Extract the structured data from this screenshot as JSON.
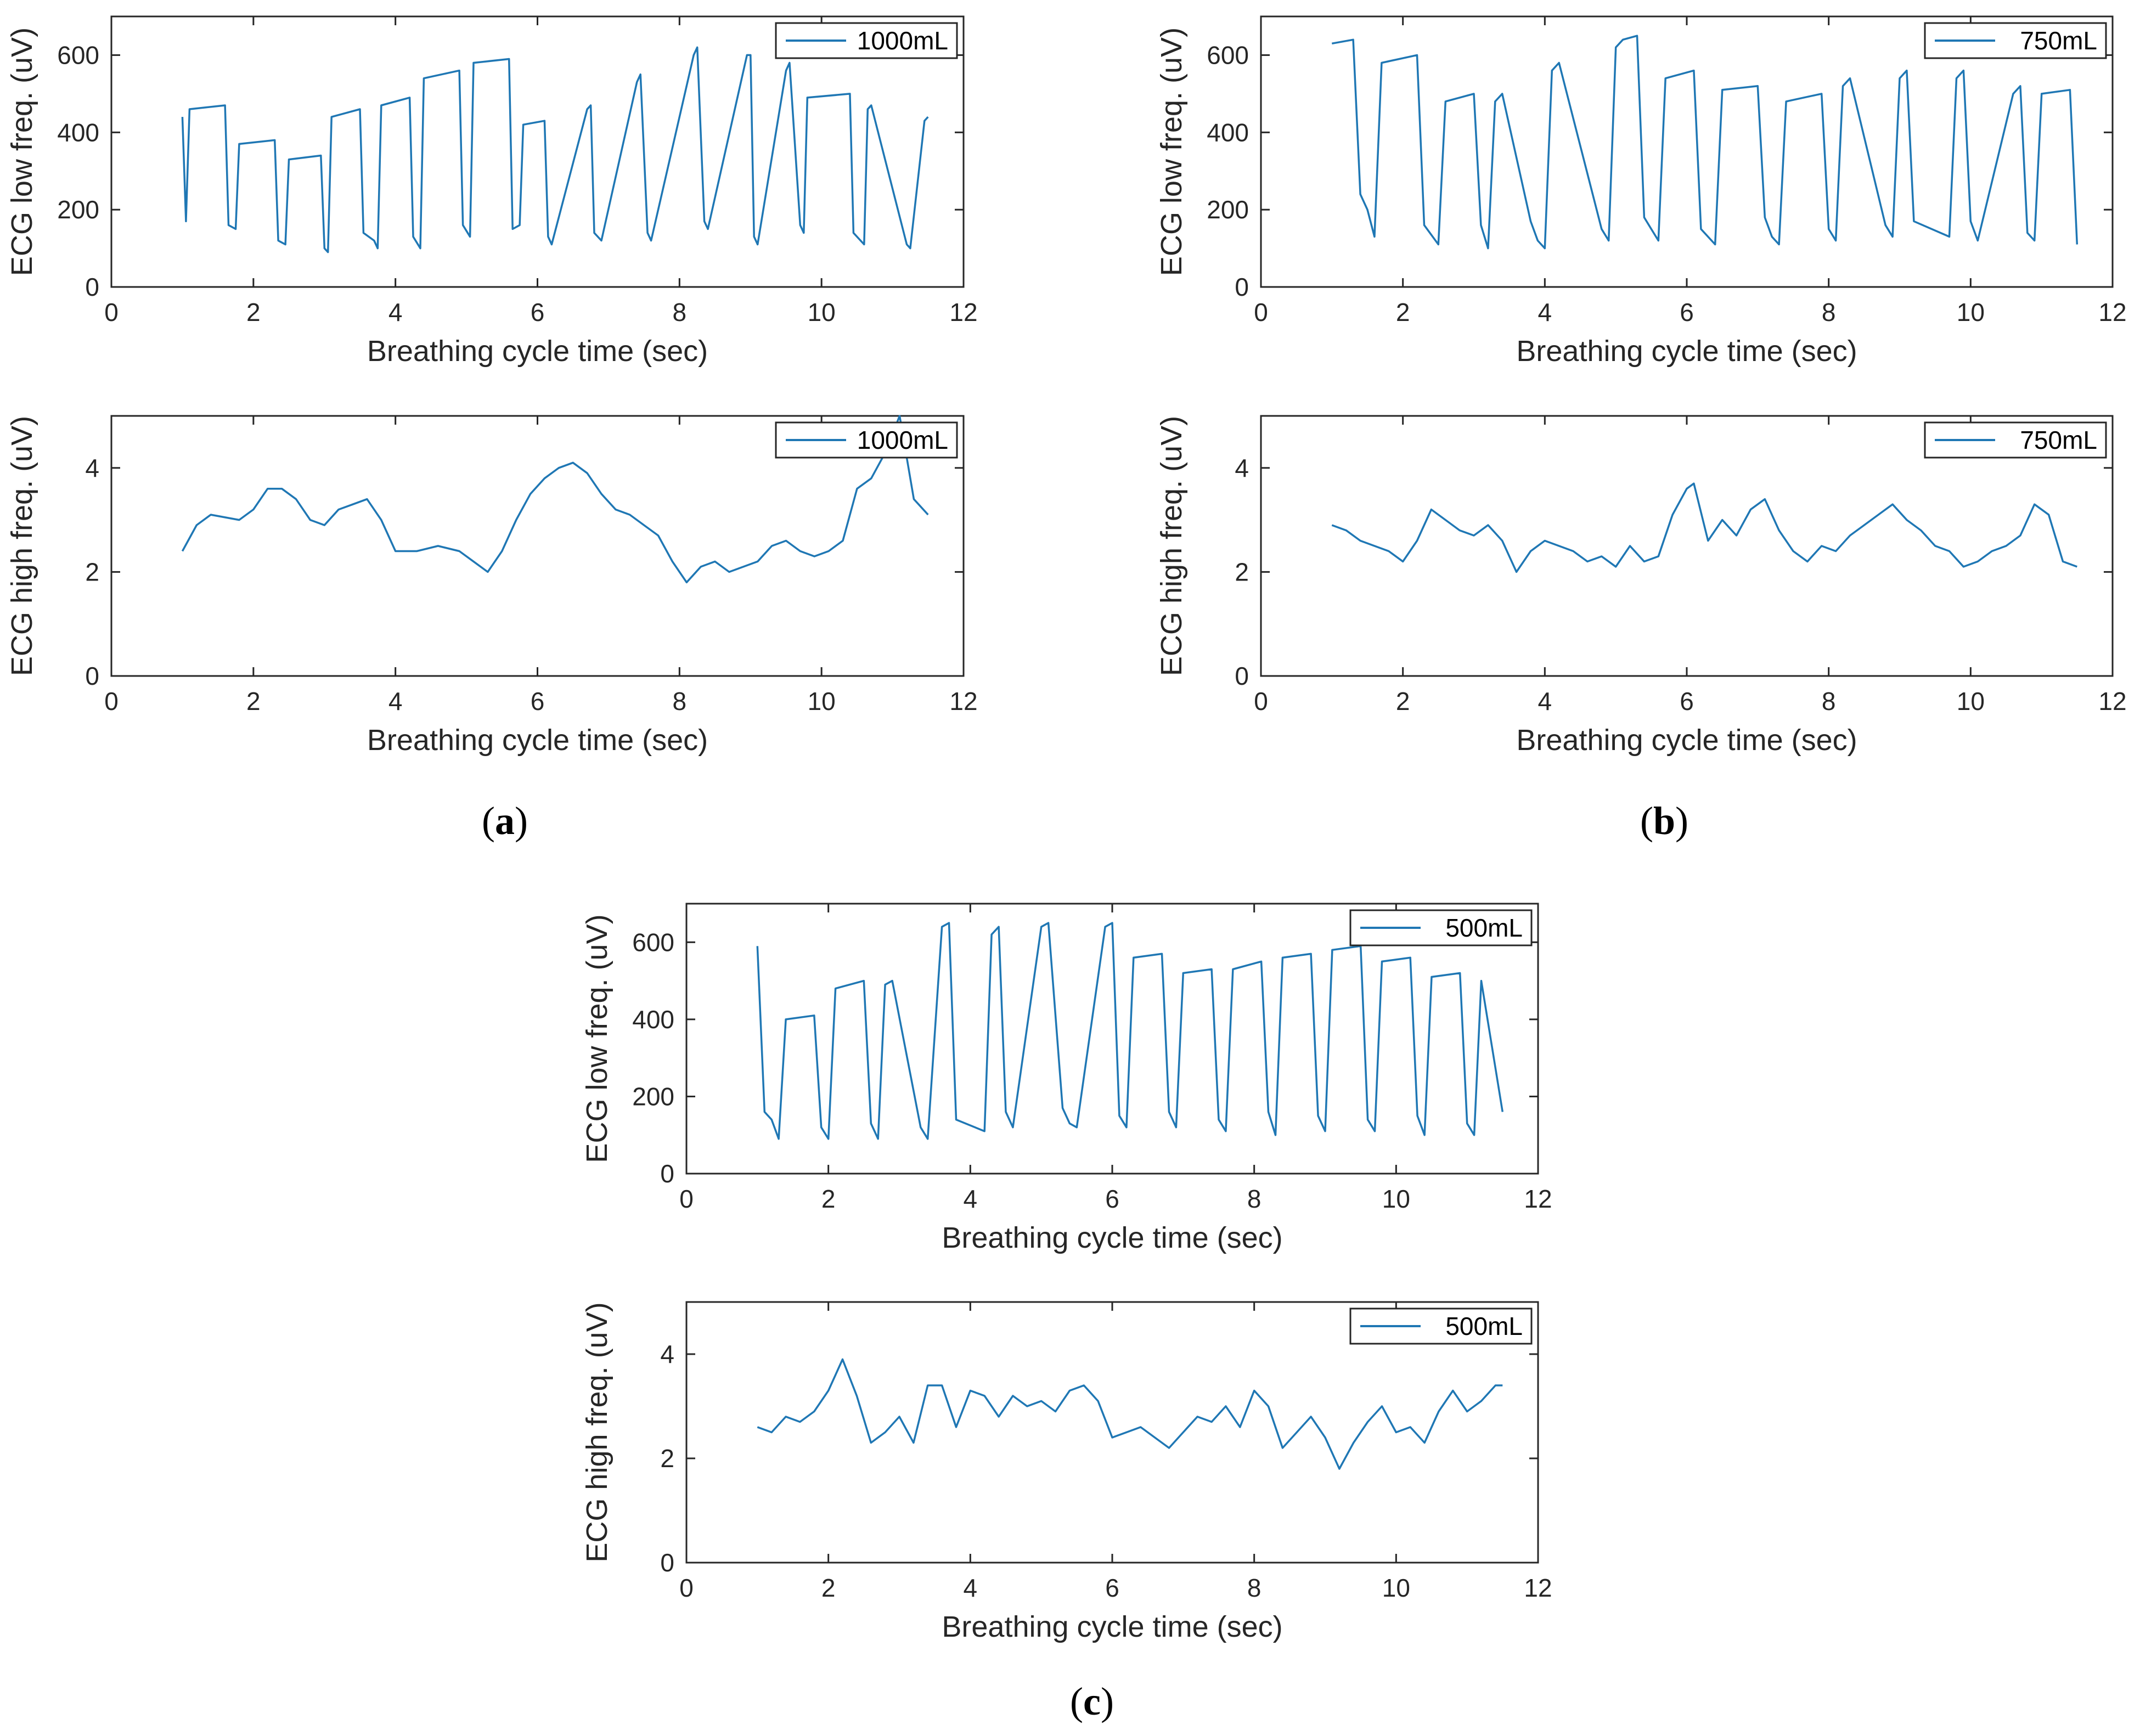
{
  "figure": {
    "captions": [
      {
        "id": "a",
        "open": "(",
        "letter": "a",
        "close": ")"
      },
      {
        "id": "b",
        "open": "(",
        "letter": "b",
        "close": ")"
      },
      {
        "id": "c",
        "open": "(",
        "letter": "c",
        "close": ")"
      }
    ],
    "colors": {
      "line": "#1f77b4",
      "axis": "#262626",
      "text": "#262626"
    }
  },
  "chart_data": [
    {
      "id": "a-low",
      "panel": "a",
      "type": "line",
      "title": "",
      "xlabel": "Breathing cycle time (sec)",
      "ylabel": "ECG low freq. (uV)",
      "xlim": [
        0,
        12
      ],
      "ylim": [
        0,
        700
      ],
      "xticks": [
        0,
        2,
        4,
        6,
        8,
        10,
        12
      ],
      "yticks": [
        0,
        200,
        400,
        600
      ],
      "grid": false,
      "legend_position": "top-right",
      "series": [
        {
          "name": "1000mL",
          "x": [
            1.0,
            1.05,
            1.1,
            1.6,
            1.65,
            1.75,
            1.8,
            2.3,
            2.35,
            2.45,
            2.5,
            2.95,
            3.0,
            3.05,
            3.1,
            3.5,
            3.55,
            3.7,
            3.75,
            3.8,
            4.2,
            4.25,
            4.35,
            4.4,
            4.9,
            4.95,
            5.05,
            5.1,
            5.6,
            5.65,
            5.75,
            5.8,
            6.1,
            6.15,
            6.2,
            6.7,
            6.75,
            6.8,
            6.9,
            7.4,
            7.45,
            7.55,
            7.6,
            8.2,
            8.25,
            8.35,
            8.4,
            8.95,
            9.0,
            9.05,
            9.1,
            9.5,
            9.55,
            9.7,
            9.75,
            9.8,
            10.4,
            10.45,
            10.6,
            10.65,
            10.7,
            11.2,
            11.25,
            11.45,
            11.5
          ],
          "values": [
            440,
            170,
            460,
            470,
            160,
            150,
            370,
            380,
            120,
            110,
            330,
            340,
            100,
            90,
            440,
            460,
            140,
            120,
            100,
            470,
            490,
            130,
            100,
            540,
            560,
            160,
            130,
            580,
            590,
            150,
            160,
            420,
            430,
            130,
            110,
            460,
            470,
            140,
            120,
            530,
            550,
            140,
            120,
            600,
            620,
            170,
            150,
            600,
            600,
            130,
            110,
            560,
            580,
            160,
            140,
            490,
            500,
            140,
            110,
            460,
            470,
            110,
            100,
            430,
            440
          ]
        }
      ]
    },
    {
      "id": "a-high",
      "panel": "a",
      "type": "line",
      "title": "",
      "xlabel": "Breathing cycle time (sec)",
      "ylabel": "ECG high freq. (uV)",
      "xlim": [
        0,
        12
      ],
      "ylim": [
        0,
        5
      ],
      "xticks": [
        0,
        2,
        4,
        6,
        8,
        10,
        12
      ],
      "yticks": [
        0,
        2,
        4
      ],
      "grid": false,
      "legend_position": "top-right",
      "series": [
        {
          "name": "1000mL",
          "x": [
            1.0,
            1.2,
            1.4,
            1.8,
            2.0,
            2.2,
            2.4,
            2.6,
            2.8,
            3.0,
            3.2,
            3.4,
            3.6,
            3.8,
            4.0,
            4.3,
            4.6,
            4.9,
            5.1,
            5.3,
            5.5,
            5.7,
            5.9,
            6.1,
            6.3,
            6.5,
            6.7,
            6.9,
            7.1,
            7.3,
            7.5,
            7.7,
            7.9,
            8.1,
            8.3,
            8.5,
            8.7,
            8.9,
            9.1,
            9.3,
            9.5,
            9.7,
            9.9,
            10.1,
            10.3,
            10.5,
            10.7,
            10.9,
            11.1,
            11.3,
            11.5
          ],
          "values": [
            2.4,
            2.9,
            3.1,
            3.0,
            3.2,
            3.6,
            3.6,
            3.4,
            3.0,
            2.9,
            3.2,
            3.3,
            3.4,
            3.0,
            2.4,
            2.4,
            2.5,
            2.4,
            2.2,
            2.0,
            2.4,
            3.0,
            3.5,
            3.8,
            4.0,
            4.1,
            3.9,
            3.5,
            3.2,
            3.1,
            2.9,
            2.7,
            2.2,
            1.8,
            2.1,
            2.2,
            2.0,
            2.1,
            2.2,
            2.5,
            2.6,
            2.4,
            2.3,
            2.4,
            2.6,
            3.6,
            3.8,
            4.3,
            5.0,
            3.4,
            3.1
          ]
        }
      ]
    },
    {
      "id": "b-low",
      "panel": "b",
      "type": "line",
      "title": "",
      "xlabel": "Breathing cycle time (sec)",
      "ylabel": "ECG low freq. (uV)",
      "xlim": [
        0,
        12
      ],
      "ylim": [
        0,
        700
      ],
      "xticks": [
        0,
        2,
        4,
        6,
        8,
        10,
        12
      ],
      "yticks": [
        0,
        200,
        400,
        600
      ],
      "grid": false,
      "legend_position": "top-right",
      "series": [
        {
          "name": "750mL",
          "x": [
            1.0,
            1.3,
            1.4,
            1.5,
            1.6,
            1.7,
            2.2,
            2.3,
            2.5,
            2.6,
            3.0,
            3.1,
            3.2,
            3.3,
            3.4,
            3.8,
            3.9,
            4.0,
            4.1,
            4.2,
            4.8,
            4.9,
            5.0,
            5.1,
            5.3,
            5.4,
            5.5,
            5.6,
            5.7,
            6.1,
            6.2,
            6.4,
            6.5,
            7.0,
            7.1,
            7.2,
            7.3,
            7.4,
            7.9,
            8.0,
            8.1,
            8.2,
            8.3,
            8.8,
            8.9,
            9.0,
            9.1,
            9.2,
            9.7,
            9.8,
            9.9,
            10.0,
            10.1,
            10.6,
            10.7,
            10.8,
            10.9,
            11.0,
            11.4,
            11.5
          ],
          "values": [
            630,
            640,
            240,
            200,
            130,
            580,
            600,
            160,
            110,
            480,
            500,
            160,
            100,
            480,
            500,
            170,
            120,
            100,
            560,
            580,
            150,
            120,
            620,
            640,
            650,
            180,
            150,
            120,
            540,
            560,
            150,
            110,
            510,
            520,
            180,
            130,
            110,
            480,
            500,
            150,
            120,
            520,
            540,
            160,
            130,
            540,
            560,
            170,
            130,
            540,
            560,
            170,
            120,
            500,
            520,
            140,
            120,
            500,
            510,
            110
          ]
        }
      ]
    },
    {
      "id": "b-high",
      "panel": "b",
      "type": "line",
      "title": "",
      "xlabel": "Breathing cycle time (sec)",
      "ylabel": "ECG high freq. (uV)",
      "xlim": [
        0,
        12
      ],
      "ylim": [
        0,
        5
      ],
      "xticks": [
        0,
        2,
        4,
        6,
        8,
        10,
        12
      ],
      "yticks": [
        0,
        2,
        4
      ],
      "grid": false,
      "legend_position": "top-right",
      "series": [
        {
          "name": "750mL",
          "x": [
            1.0,
            1.2,
            1.4,
            1.6,
            1.8,
            2.0,
            2.2,
            2.4,
            2.6,
            2.8,
            3.0,
            3.2,
            3.4,
            3.6,
            3.8,
            4.0,
            4.2,
            4.4,
            4.6,
            4.8,
            5.0,
            5.2,
            5.4,
            5.6,
            5.8,
            6.0,
            6.1,
            6.3,
            6.5,
            6.7,
            6.9,
            7.1,
            7.3,
            7.5,
            7.7,
            7.9,
            8.1,
            8.3,
            8.5,
            8.7,
            8.9,
            9.1,
            9.3,
            9.5,
            9.7,
            9.9,
            10.1,
            10.3,
            10.5,
            10.7,
            10.9,
            11.1,
            11.3,
            11.5
          ],
          "values": [
            2.9,
            2.8,
            2.6,
            2.5,
            2.4,
            2.2,
            2.6,
            3.2,
            3.0,
            2.8,
            2.7,
            2.9,
            2.6,
            2.0,
            2.4,
            2.6,
            2.5,
            2.4,
            2.2,
            2.3,
            2.1,
            2.5,
            2.2,
            2.3,
            3.1,
            3.6,
            3.7,
            2.6,
            3.0,
            2.7,
            3.2,
            3.4,
            2.8,
            2.4,
            2.2,
            2.5,
            2.4,
            2.7,
            2.9,
            3.1,
            3.3,
            3.0,
            2.8,
            2.5,
            2.4,
            2.1,
            2.2,
            2.4,
            2.5,
            2.7,
            3.3,
            3.1,
            2.2,
            2.1
          ]
        }
      ]
    },
    {
      "id": "c-low",
      "panel": "c",
      "type": "line",
      "title": "",
      "xlabel": "Breathing cycle time (sec)",
      "ylabel": "ECG low freq. (uV)",
      "xlim": [
        0,
        12
      ],
      "ylim": [
        0,
        700
      ],
      "xticks": [
        0,
        2,
        4,
        6,
        8,
        10,
        12
      ],
      "yticks": [
        0,
        200,
        400,
        600
      ],
      "grid": false,
      "legend_position": "top-right",
      "series": [
        {
          "name": "500mL",
          "x": [
            1.0,
            1.1,
            1.2,
            1.3,
            1.4,
            1.8,
            1.9,
            2.0,
            2.1,
            2.5,
            2.6,
            2.7,
            2.8,
            2.9,
            3.3,
            3.4,
            3.6,
            3.7,
            3.8,
            4.2,
            4.3,
            4.4,
            4.5,
            4.6,
            5.0,
            5.1,
            5.3,
            5.4,
            5.5,
            5.9,
            6.0,
            6.1,
            6.2,
            6.3,
            6.7,
            6.8,
            6.9,
            7.0,
            7.4,
            7.5,
            7.6,
            7.7,
            8.1,
            8.2,
            8.3,
            8.4,
            8.8,
            8.9,
            9.0,
            9.1,
            9.5,
            9.6,
            9.7,
            9.8,
            10.2,
            10.3,
            10.4,
            10.5,
            10.9,
            11.0,
            11.1,
            11.2,
            11.5
          ],
          "values": [
            590,
            160,
            140,
            90,
            400,
            410,
            120,
            90,
            480,
            500,
            130,
            90,
            490,
            500,
            120,
            90,
            640,
            650,
            140,
            110,
            620,
            640,
            160,
            120,
            640,
            650,
            170,
            130,
            120,
            640,
            650,
            150,
            120,
            560,
            570,
            160,
            120,
            520,
            530,
            140,
            110,
            530,
            550,
            160,
            100,
            560,
            570,
            150,
            110,
            580,
            590,
            140,
            110,
            550,
            560,
            150,
            100,
            510,
            520,
            130,
            100,
            500,
            160
          ]
        }
      ]
    },
    {
      "id": "c-high",
      "panel": "c",
      "type": "line",
      "title": "",
      "xlabel": "Breathing cycle time (sec)",
      "ylabel": "ECG high freq. (uV)",
      "xlim": [
        0,
        12
      ],
      "ylim": [
        0,
        5
      ],
      "xticks": [
        0,
        2,
        4,
        6,
        8,
        10,
        12
      ],
      "yticks": [
        0,
        2,
        4
      ],
      "grid": false,
      "legend_position": "top-right",
      "series": [
        {
          "name": "500mL",
          "x": [
            1.0,
            1.2,
            1.4,
            1.6,
            1.8,
            2.0,
            2.2,
            2.4,
            2.6,
            2.8,
            3.0,
            3.2,
            3.4,
            3.6,
            3.8,
            4.0,
            4.2,
            4.4,
            4.6,
            4.8,
            5.0,
            5.2,
            5.4,
            5.6,
            5.8,
            6.0,
            6.2,
            6.4,
            6.6,
            6.8,
            7.0,
            7.2,
            7.4,
            7.6,
            7.8,
            8.0,
            8.2,
            8.4,
            8.6,
            8.8,
            9.0,
            9.2,
            9.4,
            9.6,
            9.8,
            10.0,
            10.2,
            10.4,
            10.6,
            10.8,
            11.0,
            11.2,
            11.4,
            11.5
          ],
          "values": [
            2.6,
            2.5,
            2.8,
            2.7,
            2.9,
            3.3,
            3.9,
            3.2,
            2.3,
            2.5,
            2.8,
            2.3,
            3.4,
            3.4,
            2.6,
            3.3,
            3.2,
            2.8,
            3.2,
            3.0,
            3.1,
            2.9,
            3.3,
            3.4,
            3.1,
            2.4,
            2.5,
            2.6,
            2.4,
            2.2,
            2.5,
            2.8,
            2.7,
            3.0,
            2.6,
            3.3,
            3.0,
            2.2,
            2.5,
            2.8,
            2.4,
            1.8,
            2.3,
            2.7,
            3.0,
            2.5,
            2.6,
            2.3,
            2.9,
            3.3,
            2.9,
            3.1,
            3.4,
            3.4
          ]
        }
      ]
    }
  ]
}
